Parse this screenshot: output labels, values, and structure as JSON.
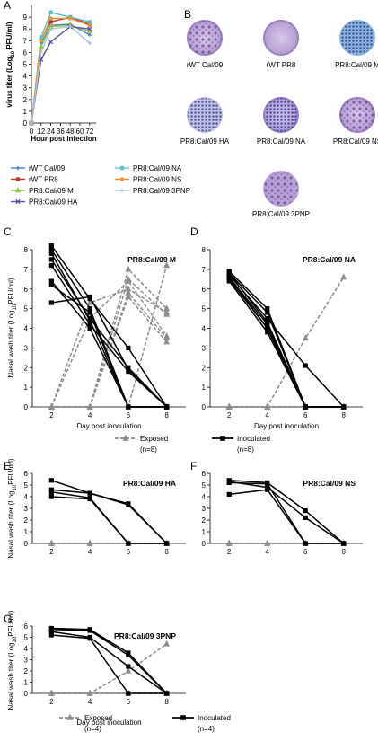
{
  "chart_data": [
    {
      "type": "line",
      "panel": "A",
      "xlabel": "Hour post infection",
      "ylabel": {
        "text": "virus titer (Log",
        "sub": "10",
        "rest": " PFU/ml)"
      },
      "x": [
        0,
        12,
        24,
        48,
        72
      ],
      "xlim": [
        0,
        80
      ],
      "xticks": [
        0,
        12,
        24,
        36,
        48,
        60,
        72
      ],
      "ylim": [
        0,
        10
      ],
      "yticks": [
        0,
        1,
        2,
        3,
        4,
        5,
        6,
        7,
        8,
        9
      ],
      "series": [
        {
          "name": "rWT Cal/09",
          "color": "#4a86c5",
          "marker": "diamond",
          "values": [
            0,
            6.8,
            8.3,
            8.4,
            7.5
          ]
        },
        {
          "name": "rWT PR8",
          "color": "#c0392b",
          "marker": "square",
          "values": [
            0,
            7.1,
            8.6,
            9.0,
            8.4
          ]
        },
        {
          "name": "PR8:Cal/09 M",
          "color": "#8dc63f",
          "marker": "triangle",
          "values": [
            0,
            6.5,
            8.2,
            8.3,
            7.8
          ]
        },
        {
          "name": "PR8:Cal/09 HA",
          "color": "#5b4fa8",
          "marker": "x",
          "values": [
            0,
            5.4,
            6.9,
            8.2,
            8.0
          ]
        },
        {
          "name": "PR8:Cal/09 NA",
          "color": "#5bc0c8",
          "marker": "square",
          "values": [
            0,
            7.3,
            9.4,
            9.0,
            8.6
          ]
        },
        {
          "name": "PR8:Cal/09 NS",
          "color": "#f28e2b",
          "marker": "circle",
          "values": [
            0,
            7.0,
            8.9,
            8.9,
            8.3
          ]
        },
        {
          "name": "PR8:Cal/09 3PNP",
          "color": "#a9c4e6",
          "marker": "diamond",
          "values": [
            0,
            6.0,
            8.0,
            8.2,
            6.8
          ]
        }
      ]
    },
    {
      "type": "line",
      "panel": "C",
      "title": "PR8:Cal/09 M",
      "xlabel": "Day post inoculation",
      "ylabel": {
        "text": "Nasal wash titer (Log",
        "sub": "10",
        "rest": "PFU/ml)"
      },
      "x": [
        2,
        4,
        6,
        8
      ],
      "xlim": [
        1,
        9
      ],
      "xticks": [
        2,
        4,
        6,
        8
      ],
      "ylim": [
        0,
        8
      ],
      "yticks": [
        0,
        1,
        2,
        3,
        4,
        5,
        6,
        7,
        8
      ],
      "series": [
        {
          "color": "#8c8c8c",
          "marker": "triangle",
          "dashed": true,
          "values": [
            0,
            0,
            7.0,
            5.0
          ]
        },
        {
          "color": "#8c8c8c",
          "marker": "triangle",
          "dashed": true,
          "values": [
            0,
            0,
            5.8,
            3.5
          ]
        },
        {
          "color": "#8c8c8c",
          "marker": "triangle",
          "dashed": true,
          "values": [
            0,
            0,
            6.5,
            4.7
          ]
        },
        {
          "color": "#8c8c8c",
          "marker": "triangle",
          "dashed": true,
          "values": [
            0,
            0,
            5.6,
            3.3
          ]
        },
        {
          "color": "#8c8c8c",
          "marker": "triangle",
          "dashed": true,
          "values": [
            0,
            0,
            0,
            7.2
          ]
        },
        {
          "color": "#8c8c8c",
          "marker": "triangle",
          "dashed": true,
          "values": [
            0,
            5.3,
            6.0,
            4.8
          ]
        },
        {
          "color": "#8c8c8c",
          "marker": "triangle",
          "dashed": true,
          "values": [
            0,
            4.5,
            6.4,
            3.6
          ]
        },
        {
          "color": "#8c8c8c",
          "marker": "triangle",
          "dashed": true,
          "values": [
            0,
            0,
            0,
            0
          ]
        },
        {
          "color": "#000000",
          "marker": "square",
          "dashed": false,
          "values": [
            8.2,
            5.5,
            3.0,
            0
          ]
        },
        {
          "color": "#000000",
          "marker": "square",
          "dashed": false,
          "values": [
            8.0,
            5.0,
            0,
            0
          ]
        },
        {
          "color": "#000000",
          "marker": "square",
          "dashed": false,
          "values": [
            7.5,
            4.5,
            2.0,
            0
          ]
        },
        {
          "color": "#000000",
          "marker": "square",
          "dashed": false,
          "values": [
            7.2,
            4.2,
            1.8,
            0
          ]
        },
        {
          "color": "#000000",
          "marker": "square",
          "dashed": false,
          "values": [
            6.4,
            4.0,
            0,
            0
          ]
        },
        {
          "color": "#000000",
          "marker": "square",
          "dashed": false,
          "values": [
            6.2,
            4.8,
            0,
            0
          ]
        },
        {
          "color": "#000000",
          "marker": "square",
          "dashed": false,
          "values": [
            5.3,
            5.6,
            1.9,
            0
          ]
        },
        {
          "color": "#000000",
          "marker": "square",
          "dashed": false,
          "values": [
            7.8,
            4.4,
            0,
            0
          ]
        }
      ]
    },
    {
      "type": "line",
      "panel": "D",
      "title": "PR8:Cal/09 NA",
      "xlabel": "Day post inoculation",
      "x": [
        2,
        4,
        6,
        8
      ],
      "xlim": [
        1,
        9
      ],
      "xticks": [
        2,
        4,
        6,
        8
      ],
      "ylim": [
        0,
        8
      ],
      "yticks": [
        0,
        1,
        2,
        3,
        4,
        5,
        6,
        7,
        8
      ],
      "series": [
        {
          "color": "#8c8c8c",
          "marker": "triangle",
          "dashed": true,
          "values": [
            0,
            0,
            3.5,
            6.6
          ]
        },
        {
          "color": "#8c8c8c",
          "marker": "triangle",
          "dashed": true,
          "values": [
            0,
            0,
            0,
            0
          ]
        },
        {
          "color": "#8c8c8c",
          "marker": "triangle",
          "dashed": true,
          "values": [
            0,
            0,
            0,
            0
          ]
        },
        {
          "color": "#8c8c8c",
          "marker": "triangle",
          "dashed": true,
          "values": [
            0,
            0,
            0,
            0
          ]
        },
        {
          "color": "#8c8c8c",
          "marker": "triangle",
          "dashed": true,
          "values": [
            0,
            0,
            0,
            0
          ]
        },
        {
          "color": "#8c8c8c",
          "marker": "triangle",
          "dashed": true,
          "values": [
            0,
            0,
            0,
            0
          ]
        },
        {
          "color": "#8c8c8c",
          "marker": "triangle",
          "dashed": true,
          "values": [
            0,
            0,
            0,
            0
          ]
        },
        {
          "color": "#8c8c8c",
          "marker": "triangle",
          "dashed": true,
          "values": [
            0,
            0,
            0,
            0
          ]
        },
        {
          "color": "#000000",
          "marker": "square",
          "dashed": false,
          "values": [
            6.9,
            5.0,
            0,
            0
          ]
        },
        {
          "color": "#000000",
          "marker": "square",
          "dashed": false,
          "values": [
            6.8,
            4.8,
            0,
            0
          ]
        },
        {
          "color": "#000000",
          "marker": "square",
          "dashed": false,
          "values": [
            6.7,
            4.5,
            2.1,
            0
          ]
        },
        {
          "color": "#000000",
          "marker": "square",
          "dashed": false,
          "values": [
            6.6,
            4.2,
            0,
            0
          ]
        },
        {
          "color": "#000000",
          "marker": "square",
          "dashed": false,
          "values": [
            6.5,
            4.0,
            0,
            0
          ]
        },
        {
          "color": "#000000",
          "marker": "square",
          "dashed": false,
          "values": [
            6.4,
            3.8,
            0,
            0
          ]
        },
        {
          "color": "#000000",
          "marker": "square",
          "dashed": false,
          "values": [
            6.6,
            4.0,
            0,
            0
          ]
        },
        {
          "color": "#000000",
          "marker": "square",
          "dashed": false,
          "values": [
            6.8,
            4.3,
            0,
            0
          ]
        }
      ],
      "legend": [
        {
          "name": "Exposed",
          "note": "(n=8)",
          "color": "#8c8c8c",
          "marker": "triangle",
          "dashed": true
        },
        {
          "name": "Inoculated",
          "note": "(n=8)",
          "color": "#000000",
          "marker": "square",
          "dashed": false
        }
      ]
    },
    {
      "type": "line",
      "panel": "E",
      "title": "PR8:Cal/09 HA",
      "ylabel": {
        "text": "Nasal wash titer (Log",
        "sub": "10",
        "rest": "PFU/ml)"
      },
      "x": [
        2,
        4,
        6,
        8
      ],
      "xlim": [
        1,
        9
      ],
      "xticks": [
        2,
        4,
        6,
        8
      ],
      "ylim": [
        0,
        6
      ],
      "yticks": [
        0,
        1,
        2,
        3,
        4,
        5,
        6
      ],
      "series": [
        {
          "color": "#8c8c8c",
          "marker": "triangle",
          "dashed": true,
          "values": [
            0,
            0,
            0,
            0
          ]
        },
        {
          "color": "#8c8c8c",
          "marker": "triangle",
          "dashed": true,
          "values": [
            0,
            0,
            0,
            0
          ]
        },
        {
          "color": "#8c8c8c",
          "marker": "triangle",
          "dashed": true,
          "values": [
            0,
            0,
            0,
            0
          ]
        },
        {
          "color": "#8c8c8c",
          "marker": "triangle",
          "dashed": true,
          "values": [
            0,
            0,
            0,
            0
          ]
        },
        {
          "color": "#000000",
          "marker": "square",
          "dashed": false,
          "values": [
            5.4,
            4.3,
            3.4,
            0
          ]
        },
        {
          "color": "#000000",
          "marker": "square",
          "dashed": false,
          "values": [
            4.6,
            4.3,
            3.3,
            0
          ]
        },
        {
          "color": "#000000",
          "marker": "square",
          "dashed": false,
          "values": [
            4.4,
            3.9,
            0,
            0
          ]
        },
        {
          "color": "#000000",
          "marker": "square",
          "dashed": false,
          "values": [
            4.0,
            3.8,
            0,
            0
          ]
        }
      ]
    },
    {
      "type": "line",
      "panel": "F",
      "title": "PR8:Cal/09 NS",
      "x": [
        2,
        4,
        6,
        8
      ],
      "xlim": [
        1,
        9
      ],
      "xticks": [
        2,
        4,
        6,
        8
      ],
      "ylim": [
        0,
        6
      ],
      "yticks": [
        0,
        1,
        2,
        3,
        4,
        5,
        6
      ],
      "series": [
        {
          "color": "#8c8c8c",
          "marker": "triangle",
          "dashed": true,
          "values": [
            0,
            0,
            0,
            0
          ]
        },
        {
          "color": "#8c8c8c",
          "marker": "triangle",
          "dashed": true,
          "values": [
            0,
            0,
            0,
            0
          ]
        },
        {
          "color": "#8c8c8c",
          "marker": "triangle",
          "dashed": true,
          "values": [
            0,
            0,
            0,
            0
          ]
        },
        {
          "color": "#8c8c8c",
          "marker": "triangle",
          "dashed": true,
          "values": [
            0,
            0,
            0,
            0
          ]
        },
        {
          "color": "#000000",
          "marker": "square",
          "dashed": false,
          "values": [
            5.4,
            5.2,
            2.8,
            0
          ]
        },
        {
          "color": "#000000",
          "marker": "square",
          "dashed": false,
          "values": [
            5.3,
            4.8,
            2.2,
            0
          ]
        },
        {
          "color": "#000000",
          "marker": "square",
          "dashed": false,
          "values": [
            5.2,
            5.1,
            0,
            0
          ]
        },
        {
          "color": "#000000",
          "marker": "square",
          "dashed": false,
          "values": [
            4.2,
            4.6,
            0,
            0
          ]
        }
      ]
    },
    {
      "type": "line",
      "panel": "G",
      "title": "PR8:Cal/09 3PNP",
      "xlabel": "Day post inoculation",
      "ylabel": {
        "text": "Nasal wash titer (Log",
        "sub": "10",
        "rest": "PFU/ml)"
      },
      "x": [
        2,
        4,
        6,
        8
      ],
      "xlim": [
        1,
        9
      ],
      "xticks": [
        2,
        4,
        6,
        8
      ],
      "ylim": [
        0,
        6
      ],
      "yticks": [
        0,
        1,
        2,
        3,
        4,
        5,
        6
      ],
      "series": [
        {
          "color": "#8c8c8c",
          "marker": "triangle",
          "dashed": true,
          "values": [
            0,
            0,
            2.0,
            4.4
          ]
        },
        {
          "color": "#8c8c8c",
          "marker": "triangle",
          "dashed": true,
          "values": [
            0,
            0,
            0,
            0
          ]
        },
        {
          "color": "#8c8c8c",
          "marker": "triangle",
          "dashed": true,
          "values": [
            0,
            0,
            0,
            0
          ]
        },
        {
          "color": "#8c8c8c",
          "marker": "triangle",
          "dashed": true,
          "values": [
            0,
            0,
            0,
            0
          ]
        },
        {
          "color": "#000000",
          "marker": "square",
          "dashed": false,
          "values": [
            5.8,
            5.7,
            3.6,
            0
          ]
        },
        {
          "color": "#000000",
          "marker": "square",
          "dashed": false,
          "values": [
            5.7,
            5.6,
            3.4,
            0
          ]
        },
        {
          "color": "#000000",
          "marker": "square",
          "dashed": false,
          "values": [
            5.5,
            5.0,
            2.4,
            0
          ]
        },
        {
          "color": "#000000",
          "marker": "square",
          "dashed": false,
          "values": [
            5.2,
            4.9,
            0,
            0
          ]
        }
      ],
      "legend": [
        {
          "name": "Exposed",
          "note": "(n=4)",
          "color": "#8c8c8c",
          "marker": "triangle",
          "dashed": true
        },
        {
          "name": "Inoculated",
          "note": "(n=4)",
          "color": "#000000",
          "marker": "square",
          "dashed": false
        }
      ]
    }
  ],
  "plaque_panel": {
    "panel": "B",
    "captions": [
      "rWT Cal/09",
      "rWT PR8",
      "PR8:Cal/09 M",
      "PR8:Cal/09 HA",
      "PR8:Cal/09 NA",
      "PR8:Cal/09 NS",
      "PR8:Cal/09 3PNP"
    ]
  }
}
